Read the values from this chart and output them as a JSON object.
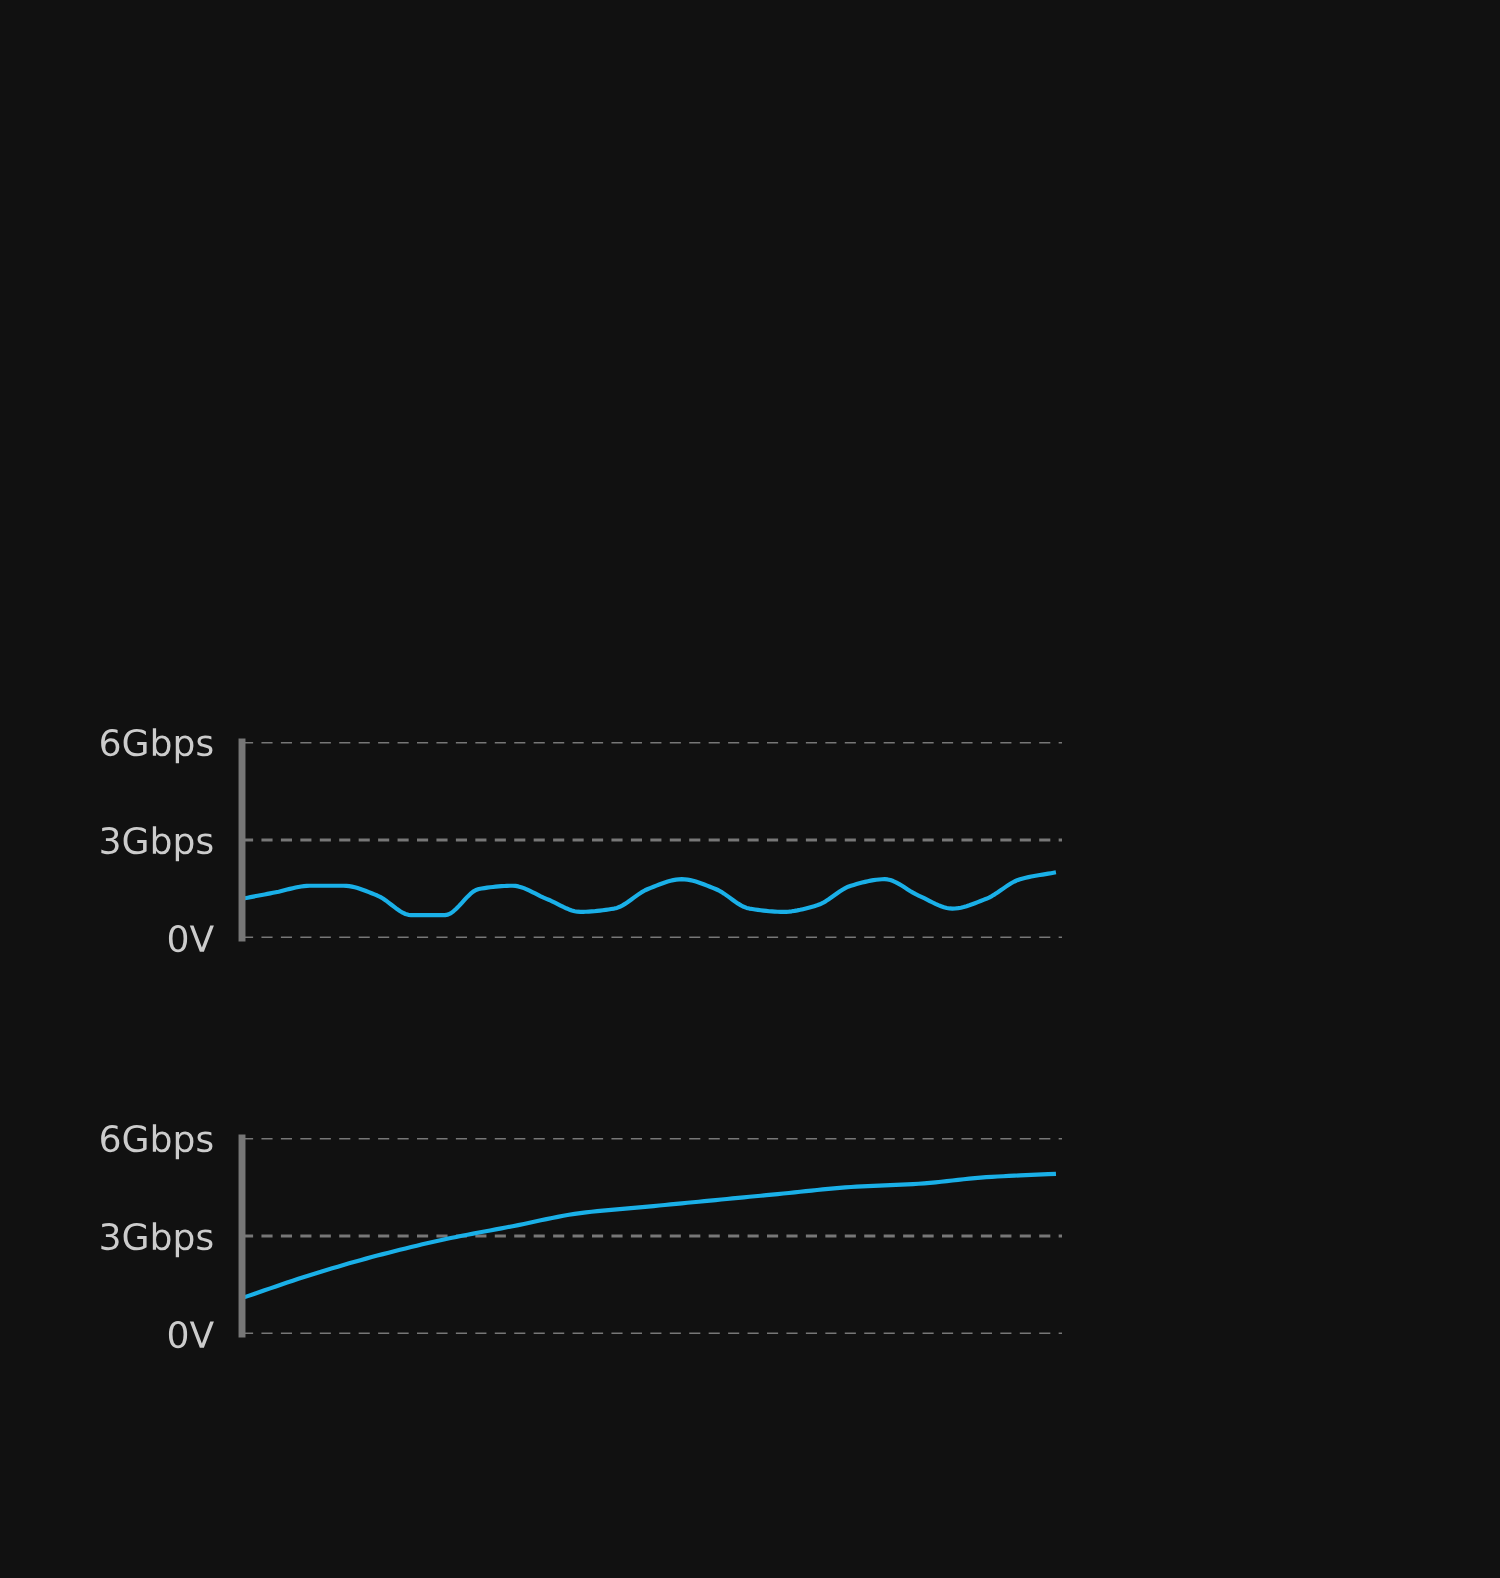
{
  "chart_data": [
    {
      "type": "line",
      "categories": [
        null,
        null,
        null,
        null,
        null,
        null,
        null,
        null,
        null,
        null,
        null,
        null,
        null,
        null,
        null,
        null,
        null,
        null,
        null,
        null,
        null,
        null,
        null,
        null,
        null
      ],
      "series": [
        {
          "color": "#1ab0e8",
          "values": [
            1.2,
            1.4,
            1.6,
            1.6,
            1.3,
            0.7,
            0.7,
            1.5,
            1.6,
            1.2,
            0.8,
            0.9,
            1.5,
            1.8,
            1.5,
            0.9,
            0.8,
            1.0,
            1.6,
            1.8,
            1.3,
            0.9,
            1.2,
            1.8,
            2.0
          ]
        }
      ],
      "ylim": [
        0,
        6
      ],
      "yticks": [
        {
          "value": 0,
          "label": "0V"
        },
        {
          "value": 3,
          "label": "3Gbps"
        },
        {
          "value": 6,
          "label": "6Gbps"
        }
      ],
      "grid": "y",
      "tick_labels": "y"
    },
    {
      "type": "line",
      "categories": [
        null,
        null,
        null,
        null,
        null,
        null,
        null,
        null,
        null,
        null,
        null,
        null,
        null
      ],
      "series": [
        {
          "color": "#1ab0e8",
          "values": [
            1.1,
            1.8,
            2.4,
            2.9,
            3.3,
            3.7,
            3.9,
            4.1,
            4.3,
            4.5,
            4.6,
            4.8,
            4.9
          ]
        }
      ],
      "ylim": [
        0,
        6
      ],
      "yticks": [
        {
          "value": 0,
          "label": "0V"
        },
        {
          "value": 3,
          "label": "3Gbps"
        },
        {
          "value": 6,
          "label": "6Gbps"
        }
      ],
      "grid": "y",
      "tick_labels": "y"
    }
  ]
}
